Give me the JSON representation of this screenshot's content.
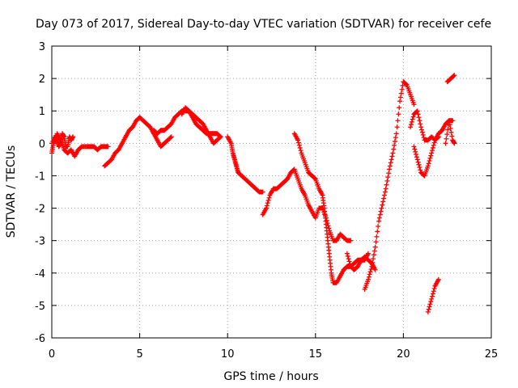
{
  "chart_data": {
    "type": "scatter",
    "title": "Day 073 of 2017, Sidereal Day-to-day VTEC variation (SDTVAR) for receiver cefe",
    "xlabel": "GPS time / hours",
    "ylabel": "SDTVAR / TECUs",
    "xlim": [
      0,
      25
    ],
    "ylim": [
      -6,
      3
    ],
    "xticks": [
      "0",
      "5",
      "10",
      "15",
      "20",
      "25"
    ],
    "yticks": [
      "-6",
      "-5",
      "-4",
      "-3",
      "-2",
      "-1",
      "0",
      "1",
      "2",
      "3"
    ],
    "grid": true,
    "marker": "+",
    "color": "#ff0000",
    "series": [
      {
        "segments": [
          [
            [
              0.0,
              -0.3
            ],
            [
              0.1,
              0.0
            ],
            [
              0.2,
              0.2
            ],
            [
              0.3,
              0.1
            ],
            [
              0.4,
              -0.1
            ],
            [
              0.5,
              0.0
            ],
            [
              0.6,
              0.3
            ],
            [
              0.7,
              0.2
            ],
            [
              0.8,
              -0.1
            ],
            [
              0.9,
              -0.1
            ],
            [
              1.0,
              0.2
            ],
            [
              1.1,
              0.1
            ],
            [
              1.2,
              0.2
            ]
          ],
          [
            [
              0.0,
              0.0
            ],
            [
              0.3,
              0.3
            ],
            [
              0.5,
              0.1
            ],
            [
              0.7,
              -0.2
            ],
            [
              0.9,
              -0.3
            ],
            [
              1.1,
              -0.2
            ],
            [
              1.3,
              -0.4
            ],
            [
              1.5,
              -0.2
            ],
            [
              1.7,
              -0.1
            ],
            [
              2.0,
              -0.1
            ],
            [
              2.2,
              -0.1
            ],
            [
              2.4,
              -0.1
            ],
            [
              2.6,
              -0.2
            ],
            [
              2.8,
              -0.1
            ],
            [
              3.0,
              -0.1
            ],
            [
              3.2,
              -0.1
            ]
          ],
          [
            [
              3.0,
              -0.7
            ],
            [
              3.2,
              -0.6
            ],
            [
              3.4,
              -0.5
            ],
            [
              3.6,
              -0.3
            ],
            [
              3.8,
              -0.2
            ],
            [
              4.0,
              0.0
            ],
            [
              4.2,
              0.2
            ],
            [
              4.4,
              0.4
            ],
            [
              4.6,
              0.5
            ],
            [
              4.8,
              0.7
            ],
            [
              5.0,
              0.8
            ],
            [
              5.2,
              0.7
            ],
            [
              5.4,
              0.6
            ],
            [
              5.6,
              0.5
            ],
            [
              5.8,
              0.3
            ],
            [
              6.0,
              0.1
            ],
            [
              6.2,
              -0.1
            ],
            [
              6.4,
              0.0
            ],
            [
              6.6,
              0.1
            ],
            [
              6.8,
              0.2
            ]
          ],
          [
            [
              5.8,
              0.4
            ],
            [
              6.0,
              0.3
            ],
            [
              6.2,
              0.4
            ],
            [
              6.4,
              0.4
            ],
            [
              6.6,
              0.5
            ],
            [
              6.8,
              0.6
            ],
            [
              7.0,
              0.8
            ],
            [
              7.2,
              0.9
            ],
            [
              7.4,
              1.0
            ],
            [
              7.6,
              1.0
            ],
            [
              7.8,
              1.0
            ],
            [
              8.0,
              0.9
            ],
            [
              8.2,
              0.8
            ],
            [
              8.4,
              0.7
            ],
            [
              8.6,
              0.6
            ],
            [
              8.8,
              0.4
            ],
            [
              9.0,
              0.2
            ],
            [
              9.2,
              0.0
            ],
            [
              9.4,
              0.1
            ],
            [
              9.6,
              0.2
            ]
          ],
          [
            [
              7.4,
              0.9
            ],
            [
              7.6,
              1.1
            ],
            [
              7.8,
              1.0
            ],
            [
              8.0,
              0.8
            ],
            [
              8.2,
              0.6
            ],
            [
              8.4,
              0.5
            ],
            [
              8.6,
              0.4
            ],
            [
              8.8,
              0.3
            ],
            [
              9.0,
              0.3
            ],
            [
              9.2,
              0.3
            ],
            [
              9.4,
              0.3
            ],
            [
              9.6,
              0.2
            ]
          ],
          [
            [
              10.0,
              0.2
            ],
            [
              10.2,
              0.0
            ],
            [
              10.3,
              -0.3
            ],
            [
              10.4,
              -0.5
            ],
            [
              10.5,
              -0.7
            ],
            [
              10.6,
              -0.9
            ],
            [
              10.8,
              -1.0
            ],
            [
              11.0,
              -1.1
            ],
            [
              11.2,
              -1.2
            ],
            [
              11.4,
              -1.3
            ],
            [
              11.6,
              -1.4
            ],
            [
              11.8,
              -1.5
            ],
            [
              12.0,
              -1.5
            ]
          ],
          [
            [
              12.0,
              -2.2
            ],
            [
              12.2,
              -2.0
            ],
            [
              12.4,
              -1.6
            ],
            [
              12.6,
              -1.4
            ],
            [
              12.8,
              -1.4
            ],
            [
              13.0,
              -1.3
            ],
            [
              13.2,
              -1.2
            ],
            [
              13.4,
              -1.1
            ],
            [
              13.6,
              -0.9
            ],
            [
              13.8,
              -0.8
            ],
            [
              14.0,
              -1.1
            ],
            [
              14.2,
              -1.4
            ],
            [
              14.4,
              -1.6
            ],
            [
              14.6,
              -1.9
            ],
            [
              14.8,
              -2.1
            ],
            [
              15.0,
              -2.3
            ],
            [
              15.2,
              -2.0
            ],
            [
              15.4,
              -2.0
            ],
            [
              15.6,
              -2.3
            ],
            [
              15.8,
              -2.7
            ],
            [
              16.0,
              -3.0
            ],
            [
              16.2,
              -3.0
            ],
            [
              16.4,
              -2.8
            ],
            [
              16.6,
              -2.9
            ],
            [
              16.8,
              -3.0
            ],
            [
              17.0,
              -3.0
            ]
          ],
          [
            [
              13.8,
              0.3
            ],
            [
              14.0,
              0.1
            ],
            [
              14.2,
              -0.3
            ],
            [
              14.4,
              -0.6
            ],
            [
              14.6,
              -0.9
            ],
            [
              14.8,
              -1.0
            ],
            [
              15.0,
              -1.1
            ],
            [
              15.2,
              -1.4
            ],
            [
              15.4,
              -1.6
            ],
            [
              15.5,
              -2.0
            ],
            [
              15.6,
              -2.5
            ],
            [
              15.7,
              -3.0
            ],
            [
              15.8,
              -3.5
            ],
            [
              15.9,
              -4.0
            ],
            [
              16.0,
              -4.3
            ],
            [
              16.2,
              -4.3
            ],
            [
              16.4,
              -4.1
            ],
            [
              16.6,
              -3.9
            ],
            [
              16.8,
              -3.8
            ],
            [
              17.0,
              -3.8
            ],
            [
              17.2,
              -3.7
            ],
            [
              17.4,
              -3.6
            ],
            [
              17.6,
              -3.6
            ],
            [
              17.8,
              -3.6
            ],
            [
              18.0,
              -3.4
            ]
          ],
          [
            [
              16.8,
              -3.4
            ],
            [
              17.0,
              -3.8
            ],
            [
              17.2,
              -3.9
            ],
            [
              17.4,
              -3.8
            ],
            [
              17.6,
              -3.6
            ],
            [
              17.8,
              -3.5
            ],
            [
              18.0,
              -3.6
            ],
            [
              18.2,
              -3.7
            ],
            [
              18.4,
              -3.9
            ]
          ],
          [
            [
              17.8,
              -4.5
            ],
            [
              18.0,
              -4.2
            ],
            [
              18.2,
              -3.8
            ],
            [
              18.4,
              -3.2
            ],
            [
              18.6,
              -2.4
            ],
            [
              18.8,
              -1.9
            ],
            [
              19.0,
              -1.4
            ],
            [
              19.2,
              -0.8
            ],
            [
              19.4,
              -0.3
            ],
            [
              19.6,
              0.3
            ],
            [
              19.8,
              1.3
            ],
            [
              20.0,
              1.9
            ],
            [
              20.2,
              1.8
            ],
            [
              20.4,
              1.5
            ],
            [
              20.6,
              1.2
            ]
          ],
          [
            [
              20.4,
              0.5
            ],
            [
              20.6,
              0.9
            ],
            [
              20.8,
              1.0
            ],
            [
              21.0,
              0.5
            ],
            [
              21.2,
              0.1
            ],
            [
              21.4,
              0.1
            ],
            [
              21.6,
              0.2
            ],
            [
              21.8,
              0.1
            ],
            [
              22.0,
              0.2
            ]
          ],
          [
            [
              20.6,
              -0.1
            ],
            [
              20.8,
              -0.5
            ],
            [
              21.0,
              -0.9
            ],
            [
              21.2,
              -1.0
            ],
            [
              21.4,
              -0.7
            ],
            [
              21.6,
              -0.3
            ],
            [
              21.8,
              0.1
            ],
            [
              22.0,
              0.3
            ],
            [
              22.2,
              0.4
            ],
            [
              22.4,
              0.6
            ],
            [
              22.6,
              0.7
            ],
            [
              22.8,
              0.7
            ]
          ],
          [
            [
              21.4,
              -5.2
            ],
            [
              21.6,
              -4.8
            ],
            [
              21.8,
              -4.4
            ],
            [
              22.0,
              -4.2
            ]
          ],
          [
            [
              22.4,
              0.0
            ],
            [
              22.6,
              0.7
            ],
            [
              22.8,
              0.1
            ],
            [
              22.9,
              0.0
            ]
          ],
          [
            [
              22.5,
              1.9
            ],
            [
              22.7,
              2.0
            ],
            [
              22.9,
              2.1
            ]
          ]
        ]
      }
    ]
  }
}
